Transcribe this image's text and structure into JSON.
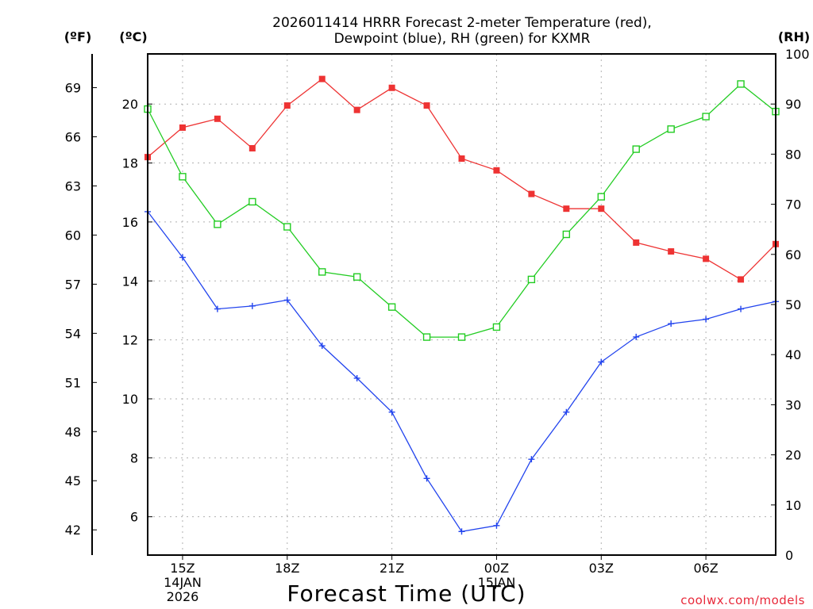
{
  "chart_data": {
    "type": "line",
    "title_lines": [
      "2026011414 HRRR Forecast 2-meter Temperature (red),",
      "Dewpoint (blue), RH (green) for KXMR"
    ],
    "xlabel": "Forecast Time (UTC)",
    "credit": "coolwx.com/models",
    "x_hours_utc": [
      14,
      15,
      16,
      17,
      18,
      19,
      20,
      21,
      22,
      23,
      24,
      25,
      26,
      27,
      28,
      29,
      30,
      31,
      32
    ],
    "x_tick_hours": [
      15,
      18,
      21,
      24,
      27,
      30
    ],
    "x_tick_labels": [
      [
        "15Z",
        "14JAN",
        "2026"
      ],
      [
        "18Z"
      ],
      [
        "21Z"
      ],
      [
        "00Z",
        "15JAN"
      ],
      [
        "03Z"
      ],
      [
        "06Z"
      ]
    ],
    "axes": {
      "celsius": {
        "label": "(ºC)",
        "range": [
          4.7,
          21.7
        ],
        "ticks": [
          6,
          8,
          10,
          12,
          14,
          16,
          18,
          20
        ]
      },
      "fahrenheit": {
        "label": "(ºF)",
        "ticks": [
          42,
          45,
          48,
          51,
          54,
          57,
          60,
          63,
          66,
          69
        ]
      },
      "rh": {
        "label": "(RH)",
        "range": [
          0,
          100
        ],
        "ticks": [
          0,
          10,
          20,
          30,
          40,
          50,
          60,
          70,
          80,
          90,
          100
        ]
      }
    },
    "series": [
      {
        "name": "Temperature",
        "axis": "celsius",
        "color": "#ee3333",
        "marker": "filled-square",
        "values": [
          18.2,
          19.2,
          19.5,
          18.5,
          19.95,
          20.85,
          19.8,
          20.55,
          19.95,
          18.15,
          17.75,
          16.95,
          16.45,
          16.45,
          15.3,
          15.0,
          14.75,
          14.05,
          15.25
        ]
      },
      {
        "name": "Dewpoint",
        "axis": "celsius",
        "color": "#2244ee",
        "marker": "plus",
        "values": [
          16.35,
          14.8,
          13.05,
          13.15,
          13.35,
          11.8,
          10.7,
          9.55,
          7.3,
          5.5,
          5.7,
          7.95,
          9.55,
          11.25,
          12.1,
          12.55,
          12.7,
          13.05,
          13.3
        ]
      },
      {
        "name": "Relative Humidity",
        "axis": "rh",
        "color": "#22cc22",
        "marker": "open-square",
        "values": [
          89,
          75.5,
          66,
          70.5,
          65.5,
          56.5,
          55.5,
          49.5,
          43.5,
          43.5,
          45.5,
          55,
          64,
          71.5,
          81,
          85,
          87.5,
          94,
          88.5
        ]
      }
    ]
  }
}
